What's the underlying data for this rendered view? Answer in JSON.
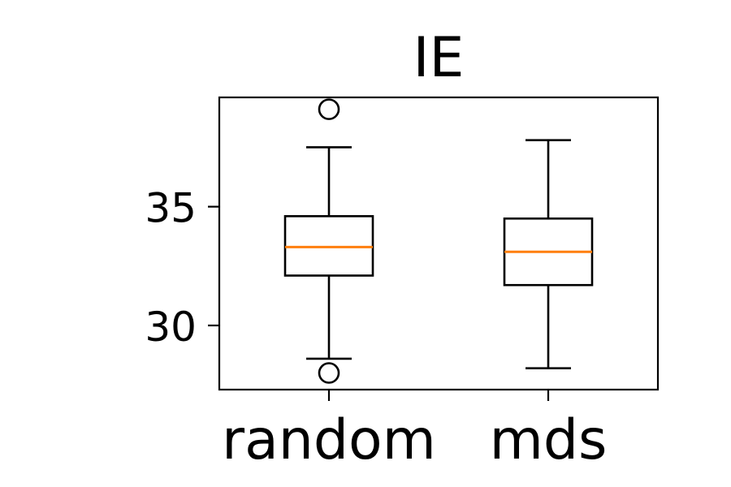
{
  "chart_data": {
    "type": "box",
    "title": "IE",
    "xlabel": "",
    "ylabel": "",
    "categories": [
      "random",
      "mds"
    ],
    "ylim": [
      27.3,
      39.6
    ],
    "yticks": [
      30,
      35
    ],
    "grid": false,
    "boxes": [
      {
        "category": "random",
        "whisker_low": 28.6,
        "q1": 32.1,
        "median": 33.3,
        "q3": 34.6,
        "whisker_high": 37.5,
        "outliers": [
          39.1,
          28.0
        ]
      },
      {
        "category": "mds",
        "whisker_low": 28.2,
        "q1": 31.7,
        "median": 33.1,
        "q3": 34.5,
        "whisker_high": 37.8,
        "outliers": []
      }
    ],
    "colors": {
      "box": "#000000",
      "median": "#ff7f0e",
      "background": "#ffffff"
    }
  }
}
